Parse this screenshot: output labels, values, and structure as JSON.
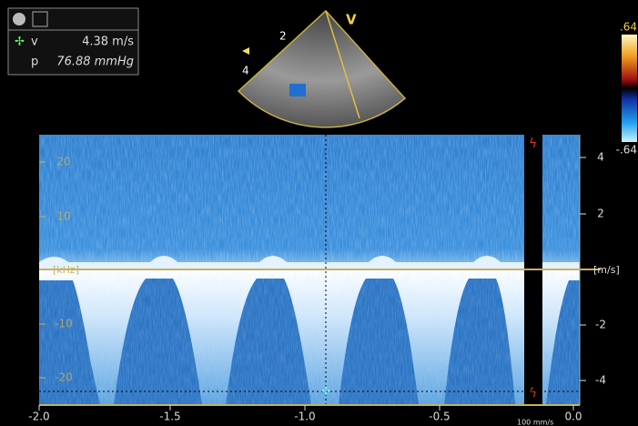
{
  "measure": {
    "v_label": "v",
    "v_value": "4.38 m/s",
    "p_label": "p",
    "p_value": "76.88 mmHg"
  },
  "sector": {
    "depth_labels": [
      "2",
      "4"
    ],
    "marker": "V"
  },
  "color_scale": {
    "max": ".64",
    "min": "-.64"
  },
  "left_axis": {
    "labels": [
      "20",
      "10",
      "-10",
      "-20"
    ],
    "unit": "[kHz]"
  },
  "right_axis": {
    "labels": [
      "4",
      "2",
      "-2",
      "-4"
    ],
    "unit": "[m/s]"
  },
  "time_axis": {
    "labels": [
      "-2.0",
      "-1.5",
      "-1.0",
      "-0.5",
      "0.0"
    ]
  },
  "sweep_speed": "100 mm/s"
}
